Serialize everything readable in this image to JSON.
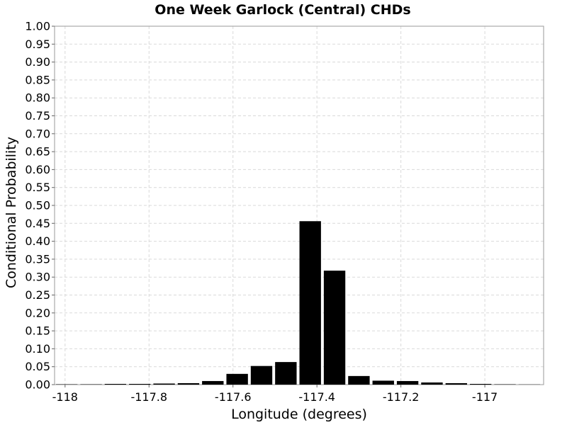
{
  "chart_data": {
    "type": "bar",
    "title": "One Week Garlock (Central) CHDs",
    "xlabel": "Longitude (degrees)",
    "ylabel": "Conditional Probability",
    "xlim": [
      -118.025,
      -116.86
    ],
    "ylim": [
      0,
      1.0
    ],
    "bin_width": 0.058,
    "bar_color": "#000000",
    "grid": true,
    "x_ticks": [
      -118,
      -117.8,
      -117.6,
      -117.4,
      -117.2,
      -117
    ],
    "x_tick_labels": [
      "-118",
      "-117.8",
      "-117.6",
      "-117.4",
      "-117.2",
      "-117"
    ],
    "y_ticks": [
      0,
      0.05,
      0.1,
      0.15,
      0.2,
      0.25,
      0.3,
      0.35,
      0.4,
      0.45,
      0.5,
      0.55,
      0.6,
      0.65,
      0.7,
      0.75,
      0.8,
      0.85,
      0.9,
      0.95,
      1.0
    ],
    "y_tick_labels": [
      "0.00",
      "0.05",
      "0.10",
      "0.15",
      "0.20",
      "0.25",
      "0.30",
      "0.35",
      "0.40",
      "0.45",
      "0.50",
      "0.55",
      "0.60",
      "0.65",
      "0.70",
      "0.75",
      "0.80",
      "0.85",
      "0.90",
      "0.95",
      "1.00"
    ],
    "x": [
      -117.996,
      -117.938,
      -117.88,
      -117.822,
      -117.764,
      -117.706,
      -117.648,
      -117.59,
      -117.532,
      -117.474,
      -117.416,
      -117.358,
      -117.3,
      -117.242,
      -117.184,
      -117.126,
      -117.068,
      -117.01,
      -116.952,
      -116.894
    ],
    "values": [
      0.001,
      0.001,
      0.002,
      0.002,
      0.003,
      0.004,
      0.01,
      0.03,
      0.052,
      0.063,
      0.456,
      0.318,
      0.024,
      0.011,
      0.01,
      0.006,
      0.004,
      0.002,
      0.001,
      0.0005
    ]
  }
}
